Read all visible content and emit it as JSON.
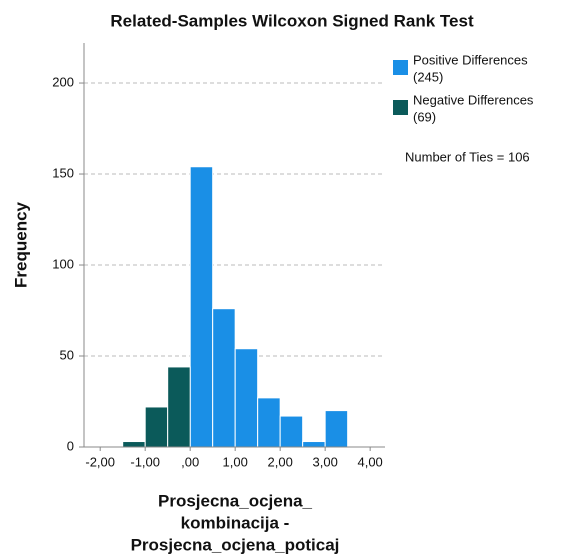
{
  "chart_data": {
    "type": "histogram",
    "title": "Related-Samples Wilcoxon Signed Rank Test",
    "ylabel": "Frequency",
    "xlabel": [
      "Prosjecna_ocjena_",
      "kombinacija -",
      "Prosjecna_ocjena_poticaj"
    ],
    "bins": [
      -1.5,
      -1.0,
      -0.5,
      0.0,
      0.5,
      1.0,
      1.5,
      2.0,
      2.5,
      3.0,
      3.5
    ],
    "series": [
      {
        "name": "Positive Differences",
        "total_label": "(245)",
        "color": "#1a8fe6",
        "values": [
          null,
          null,
          null,
          154,
          76,
          54,
          27,
          17,
          3,
          20
        ]
      },
      {
        "name": "Negative Differences",
        "total_label": "(69)",
        "color": "#0b5a5a",
        "values": [
          3,
          22,
          44,
          null,
          null,
          null,
          null,
          null,
          null,
          null
        ]
      }
    ],
    "annotation": "Number of Ties = 106",
    "xlim": [
      -2.36,
      4.33
    ],
    "xticks": [
      {
        "value": -2,
        "label": "-2,00"
      },
      {
        "value": -1,
        "label": "-1,00"
      },
      {
        "value": 0,
        "label": ",00"
      },
      {
        "value": 1,
        "label": "1,00"
      },
      {
        "value": 2,
        "label": "2,00"
      },
      {
        "value": 3,
        "label": "3,00"
      },
      {
        "value": 4,
        "label": "4,00"
      }
    ],
    "ylim": [
      0,
      222
    ],
    "yticks": [
      0,
      50,
      100,
      150,
      200
    ],
    "grid": true
  }
}
